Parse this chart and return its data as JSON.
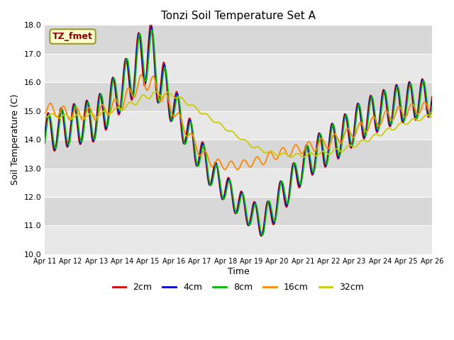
{
  "title": "Tonzi Soil Temperature Set A",
  "xlabel": "Time",
  "ylabel": "Soil Temperature (C)",
  "ylim": [
    10.0,
    18.0
  ],
  "yticks": [
    10.0,
    11.0,
    12.0,
    13.0,
    14.0,
    15.0,
    16.0,
    17.0,
    18.0
  ],
  "ytick_labels": [
    "10.0",
    "11.0",
    "12.0",
    "13.0",
    "14.0",
    "15.0",
    "16.0",
    "17.0",
    "18.0"
  ],
  "xtick_labels": [
    "Apr 11",
    "Apr 12",
    "Apr 13",
    "Apr 14",
    "Apr 15",
    "Apr 16",
    "Apr 17",
    "Apr 18",
    "Apr 19",
    "Apr 20",
    "Apr 21",
    "Apr 22",
    "Apr 23",
    "Apr 24",
    "Apr 25",
    "Apr 26"
  ],
  "series_colors": [
    "#dd0000",
    "#0000cc",
    "#00bb00",
    "#ff8800",
    "#cccc00"
  ],
  "series_labels": [
    "2cm",
    "4cm",
    "8cm",
    "16cm",
    "32cm"
  ],
  "plot_bg_light": "#e8e8e8",
  "plot_bg_dark": "#d8d8d8",
  "legend_label": "TZ_fmet",
  "legend_box_color": "#ffffcc",
  "legend_text_color": "#880000",
  "legend_edge_color": "#999933"
}
